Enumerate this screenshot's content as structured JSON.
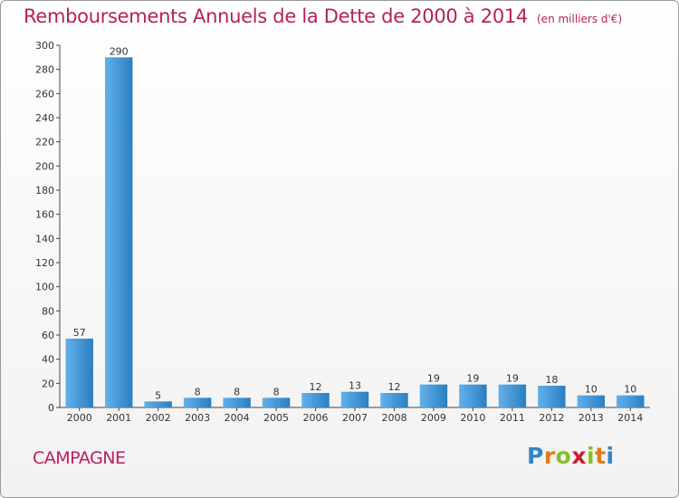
{
  "title": "Remboursements Annuels de la Dette de 2000 à 2014",
  "unit": "(en milliers d'€)",
  "town": "CAMPAGNE",
  "brand": {
    "letters": [
      "P",
      "r",
      "o",
      "x",
      "i",
      "t",
      "i"
    ],
    "colors": [
      "#2e86c8",
      "#e07b1a",
      "#8bbd2a",
      "#c8202f",
      "#8bbd2a",
      "#e07b1a",
      "#2e86c8"
    ]
  },
  "colors": {
    "title": "#b81e5e",
    "bar_light": "#62b1ea",
    "bar_dark": "#2a7fc2"
  },
  "chart_data": {
    "type": "bar",
    "title": "Remboursements Annuels de la Dette de 2000 à 2014",
    "unit": "(en milliers d'€)",
    "xlabel": "",
    "ylabel": "",
    "categories": [
      "2000",
      "2001",
      "2002",
      "2003",
      "2004",
      "2005",
      "2006",
      "2007",
      "2008",
      "2009",
      "2010",
      "2011",
      "2012",
      "2013",
      "2014"
    ],
    "values": [
      57,
      290,
      5,
      8,
      8,
      8,
      12,
      13,
      12,
      19,
      19,
      19,
      18,
      10,
      10
    ],
    "ylim": [
      0,
      300
    ],
    "yticks": [
      0,
      20,
      40,
      60,
      80,
      100,
      120,
      140,
      160,
      180,
      200,
      220,
      240,
      260,
      280,
      300
    ],
    "grid": false,
    "legend": "none"
  }
}
